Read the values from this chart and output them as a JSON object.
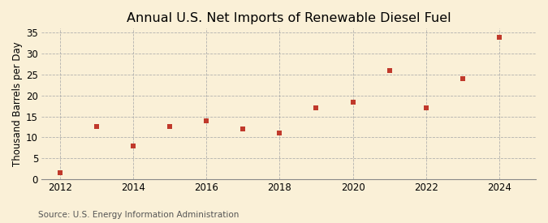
{
  "title": "Annual U.S. Net Imports of Renewable Diesel Fuel",
  "ylabel": "Thousand Barrels per Day",
  "source": "Source: U.S. Energy Information Administration",
  "fig_background_color": "#faf0d7",
  "plot_background_color": "#faf0d7",
  "marker_color": "#c0392b",
  "years": [
    2012,
    2013,
    2014,
    2015,
    2016,
    2017,
    2018,
    2019,
    2020,
    2021,
    2022,
    2023,
    2024
  ],
  "values": [
    1.5,
    12.5,
    8.0,
    12.5,
    14.0,
    12.0,
    11.0,
    17.0,
    18.5,
    26.0,
    17.0,
    24.0,
    34.0
  ],
  "xlim": [
    2011.5,
    2025.0
  ],
  "ylim": [
    0,
    36
  ],
  "yticks": [
    0,
    5,
    10,
    15,
    20,
    25,
    30,
    35
  ],
  "xticks": [
    2012,
    2014,
    2016,
    2018,
    2020,
    2022,
    2024
  ],
  "title_fontsize": 11.5,
  "label_fontsize": 8.5,
  "tick_fontsize": 8.5,
  "source_fontsize": 7.5
}
